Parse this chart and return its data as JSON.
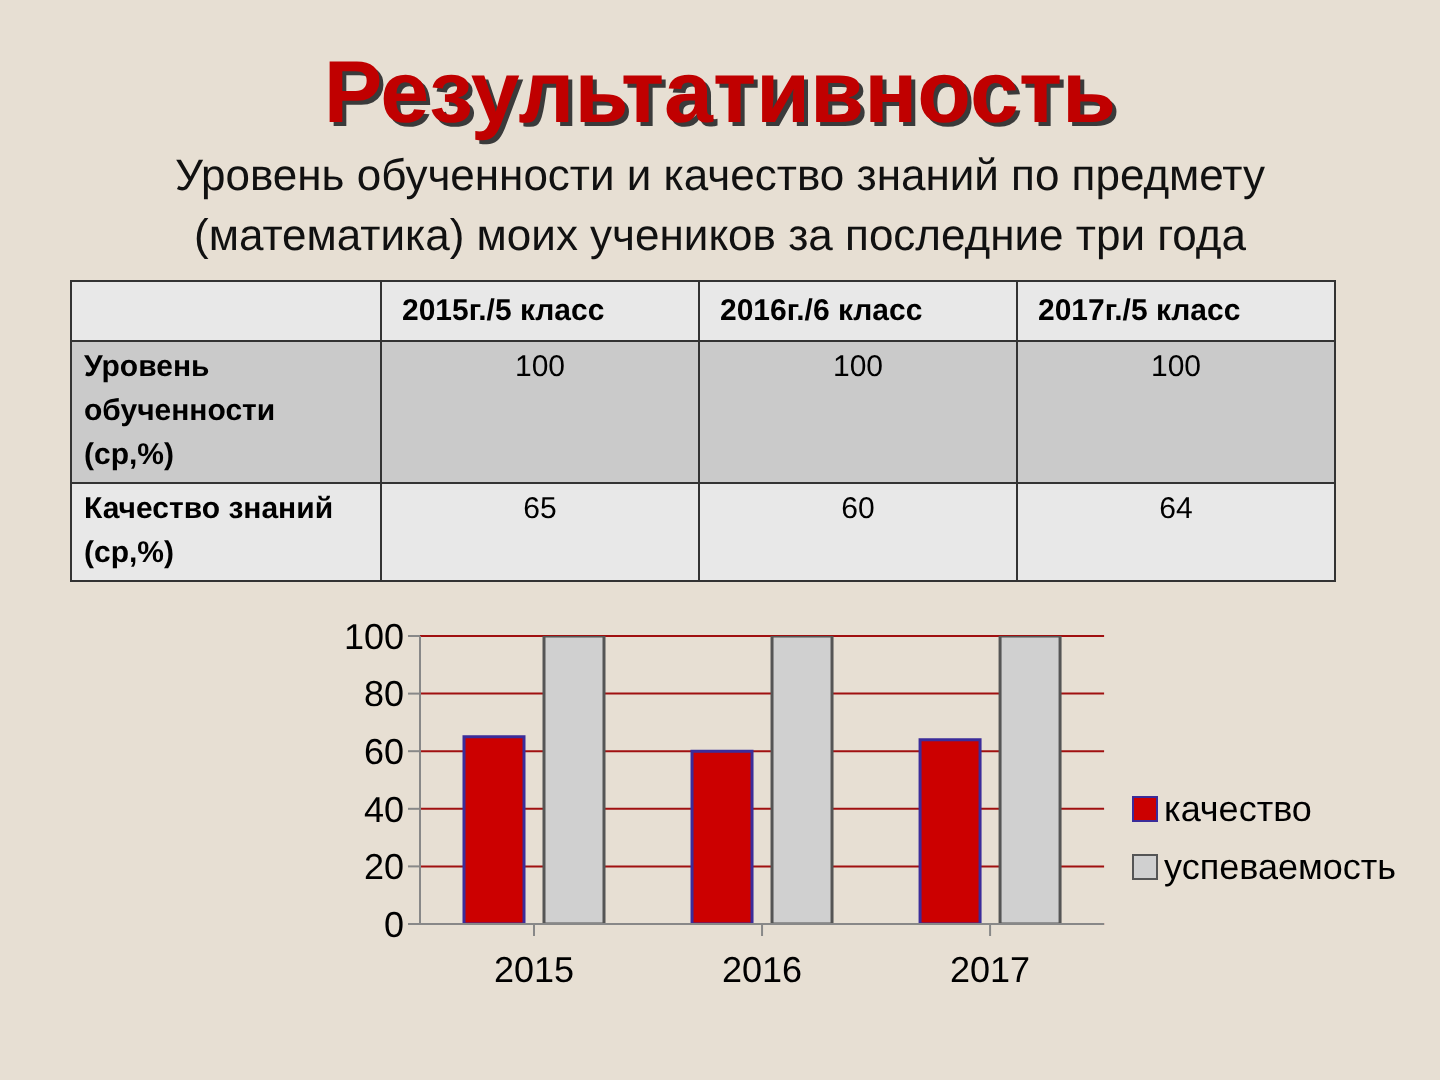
{
  "chart_data": [
    {
      "type": "other",
      "title": "Результативность",
      "subtitle": "Уровень обученности и качество знаний по предмету (математика) моих учеников за последние три года",
      "categories": [
        "2015г./5 класс",
        "2016г./6 класс",
        "2017г./5 класс"
      ],
      "series": [
        {
          "name": "Уровень обученности (ср,%)",
          "values": [
            100,
            100,
            100
          ]
        },
        {
          "name": "Качество знаний (ср,%)",
          "values": [
            65,
            60,
            64
          ]
        }
      ],
      "data_labels": true
    },
    {
      "type": "bar",
      "categories": [
        "2015",
        "2016",
        "2017"
      ],
      "series": [
        {
          "name": "качество",
          "color": "#cc0000",
          "values": [
            65,
            60,
            64
          ]
        },
        {
          "name": "успеваемость",
          "color": "#d0d0d0",
          "values": [
            100,
            100,
            100
          ]
        }
      ],
      "ylim": [
        0,
        100
      ],
      "yticks": [
        0,
        20,
        40,
        60,
        80,
        100
      ],
      "grid": "y",
      "legend": "right"
    }
  ]
}
